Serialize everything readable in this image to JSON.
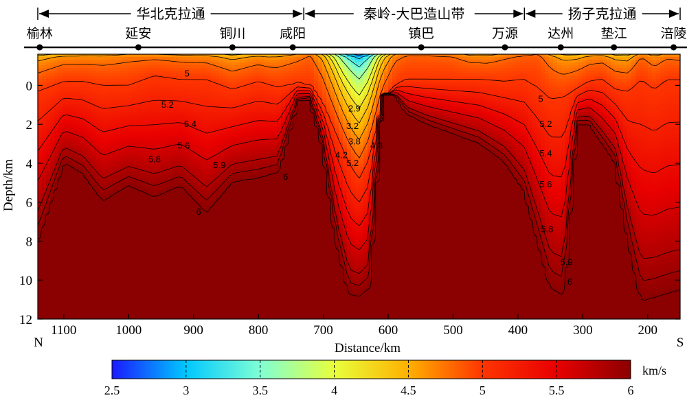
{
  "chart_data": {
    "type": "heatmap",
    "title": "",
    "xlabel": "Distance/km",
    "ylabel": "Depth/km",
    "x_direction": "reversed",
    "xlim": [
      1140,
      150
    ],
    "ylim": [
      12,
      -1.6
    ],
    "x_ticks": [
      1100,
      1000,
      900,
      800,
      700,
      600,
      500,
      400,
      300,
      200
    ],
    "y_ticks": [
      0,
      2,
      4,
      6,
      8,
      10,
      12
    ],
    "end_labels": {
      "left": "N",
      "right": "S"
    },
    "tectonic_units": [
      {
        "name": "华北克拉通",
        "from_km": 1140,
        "to_km": 730
      },
      {
        "name": "秦岭-大巴造山带",
        "from_km": 730,
        "to_km": 390
      },
      {
        "name": "扬子克拉通",
        "from_km": 390,
        "to_km": 150
      }
    ],
    "stations": [
      {
        "name": "榆林",
        "distance_km": 1137
      },
      {
        "name": "延安",
        "distance_km": 985
      },
      {
        "name": "铜川",
        "distance_km": 840
      },
      {
        "name": "咸阳",
        "distance_km": 747
      },
      {
        "name": "镇巴",
        "distance_km": 549
      },
      {
        "name": "万源",
        "distance_km": 420
      },
      {
        "name": "达州",
        "distance_km": 334
      },
      {
        "name": "垫江",
        "distance_km": 252
      },
      {
        "name": "涪陵",
        "distance_km": 160
      }
    ],
    "colorbar": {
      "unit": "km/s",
      "range": [
        2.5,
        6
      ],
      "ticks": [
        2.5,
        3,
        3.5,
        4,
        4.5,
        5,
        5.5,
        6
      ],
      "colors": [
        "#1a1aff",
        "#00c8ff",
        "#7fffd4",
        "#e8ff3c",
        "#ffb000",
        "#ff3500",
        "#e80000",
        "#8b0000"
      ]
    },
    "velocity_profiles": {
      "distance_km": [
        1140,
        1100,
        1070,
        1040,
        1000,
        960,
        920,
        880,
        840,
        800,
        770,
        740,
        720,
        700,
        680,
        660,
        645,
        630,
        610,
        590,
        570,
        540,
        500,
        460,
        420,
        390,
        370,
        350,
        330,
        310,
        290,
        270,
        250,
        230,
        210,
        190,
        170,
        150
      ],
      "vertical_gradient_km_s_per_km": 0.37,
      "top_velocity_km_s": [
        3.9,
        4.45,
        4.5,
        4.5,
        4.6,
        4.6,
        4.55,
        4.5,
        4.1,
        4.4,
        4.45,
        4.6,
        4.75,
        4.35,
        3.6,
        2.7,
        2.55,
        2.95,
        4.0,
        4.6,
        4.75,
        4.75,
        4.7,
        4.45,
        4.65,
        4.75,
        4.8,
        4.55,
        4.35,
        4.35,
        4.45,
        4.45,
        4.3,
        4.3,
        4.7,
        4.5,
        4.65,
        4.6
      ],
      "depth_of_5_km": [
        0.3,
        -0.2,
        -0.2,
        0.0,
        0.0,
        -0.5,
        -0.3,
        -0.3,
        0.2,
        -0.2,
        0.1,
        -0.1,
        0.0,
        1.0,
        2.5,
        4.0,
        4.8,
        3.8,
        1.2,
        0.0,
        -0.3,
        -0.3,
        -0.3,
        -0.3,
        -0.2,
        -0.3,
        0.1,
        0.7,
        0.6,
        0.2,
        -0.2,
        -0.3,
        0.2,
        0.3,
        -0.3,
        0.2,
        -0.3,
        -0.3
      ],
      "depth_of_6_km": [
        8.0,
        4.0,
        4.6,
        6.0,
        5.2,
        5.8,
        5.2,
        6.6,
        5.0,
        4.8,
        4.5,
        0.8,
        0.7,
        3.2,
        8.0,
        10.8,
        10.9,
        10.5,
        0.5,
        0.5,
        1.5,
        2.0,
        2.5,
        3.0,
        4.0,
        5.5,
        8.0,
        10.5,
        10.9,
        2.0,
        2.0,
        3.0,
        4.0,
        8.0,
        11.2,
        11.0,
        10.8,
        10.6
      ]
    },
    "contour_labels": [
      {
        "text": "5",
        "x": 910,
        "y": -0.6
      },
      {
        "text": "5.2",
        "x": 940,
        "y": 1.0
      },
      {
        "text": "5.4",
        "x": 905,
        "y": 2.0
      },
      {
        "text": "5.6",
        "x": 915,
        "y": 3.1
      },
      {
        "text": "5.8",
        "x": 960,
        "y": 3.8
      },
      {
        "text": "5.9",
        "x": 860,
        "y": 4.1
      },
      {
        "text": "6",
        "x": 758,
        "y": 4.7
      },
      {
        "text": "6",
        "x": 892,
        "y": 6.5
      },
      {
        "text": "2.9",
        "x": 652,
        "y": 1.2
      },
      {
        "text": "3.2",
        "x": 655,
        "y": 2.1
      },
      {
        "text": "3.8",
        "x": 652,
        "y": 2.9
      },
      {
        "text": "4.2",
        "x": 672,
        "y": 3.6
      },
      {
        "text": "4.8",
        "x": 618,
        "y": 3.1
      },
      {
        "text": "5.2",
        "x": 655,
        "y": 4.0
      },
      {
        "text": "5",
        "x": 365,
        "y": 0.7
      },
      {
        "text": "5.2",
        "x": 357,
        "y": 2.0
      },
      {
        "text": "5.4",
        "x": 357,
        "y": 3.5
      },
      {
        "text": "5.6",
        "x": 357,
        "y": 5.1
      },
      {
        "text": "5.8",
        "x": 355,
        "y": 7.4
      },
      {
        "text": "5.9",
        "x": 325,
        "y": 9.1
      },
      {
        "text": "6",
        "x": 320,
        "y": 10.1
      }
    ]
  }
}
